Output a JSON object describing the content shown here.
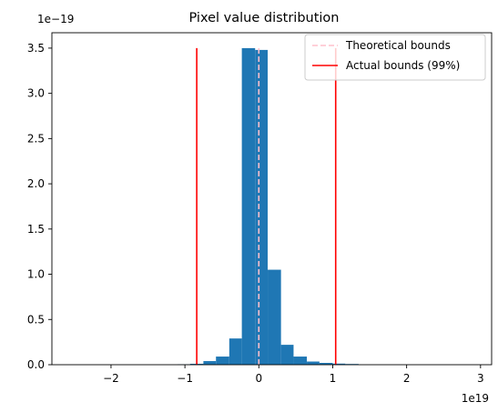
{
  "chart_data": {
    "type": "histogram",
    "title": "Pixel value distribution",
    "x_offset_text": "1e19",
    "y_offset_text": "1e−19",
    "xlim": [
      -2.8,
      3.15
    ],
    "ylim": [
      0,
      3.67
    ],
    "x_ticks": [
      -2,
      -1,
      0,
      1,
      2,
      3
    ],
    "x_tick_labels": [
      "−2",
      "−1",
      "0",
      "1",
      "2",
      "3"
    ],
    "y_ticks": [
      0.0,
      0.5,
      1.0,
      1.5,
      2.0,
      2.5,
      3.0,
      3.5
    ],
    "y_tick_labels": [
      "0.0",
      "0.5",
      "1.0",
      "1.5",
      "2.0",
      "2.5",
      "3.0",
      "3.5"
    ],
    "bins": [
      {
        "x0": -1.1,
        "x1": -0.93,
        "value": 0.005
      },
      {
        "x0": -0.93,
        "x1": -0.75,
        "value": 0.01
      },
      {
        "x0": -0.75,
        "x1": -0.58,
        "value": 0.04
      },
      {
        "x0": -0.58,
        "x1": -0.4,
        "value": 0.09
      },
      {
        "x0": -0.4,
        "x1": -0.23,
        "value": 0.29
      },
      {
        "x0": -0.23,
        "x1": -0.05,
        "value": 3.5
      },
      {
        "x0": -0.05,
        "x1": 0.12,
        "value": 3.48
      },
      {
        "x0": 0.12,
        "x1": 0.3,
        "value": 1.05
      },
      {
        "x0": 0.3,
        "x1": 0.47,
        "value": 0.22
      },
      {
        "x0": 0.47,
        "x1": 0.65,
        "value": 0.09
      },
      {
        "x0": 0.65,
        "x1": 0.82,
        "value": 0.035
      },
      {
        "x0": 0.82,
        "x1": 1.0,
        "value": 0.02
      },
      {
        "x0": 1.0,
        "x1": 1.17,
        "value": 0.012
      },
      {
        "x0": 1.17,
        "x1": 1.35,
        "value": 0.008
      }
    ],
    "vlines": [
      {
        "series": "Theoretical bounds",
        "x": 0.0,
        "ymin": 0,
        "ymax": 3.5,
        "color": "#ffc0cb",
        "style": "dashed"
      },
      {
        "series": "Actual bounds (99%)",
        "x": -0.84,
        "ymin": 0,
        "ymax": 3.5,
        "color": "#ff0000",
        "style": "solid"
      },
      {
        "series": "Actual bounds (99%)",
        "x": 1.04,
        "ymin": 0,
        "ymax": 3.5,
        "color": "#ff0000",
        "style": "solid"
      }
    ],
    "legend": {
      "placement": "top-right",
      "entries": [
        {
          "label": "Theoretical bounds",
          "color": "#ffc0cb",
          "style": "dashed"
        },
        {
          "label": "Actual bounds (99%)",
          "color": "#ff0000",
          "style": "solid"
        }
      ]
    },
    "bar_color": "#1f77b4",
    "grid": false
  }
}
